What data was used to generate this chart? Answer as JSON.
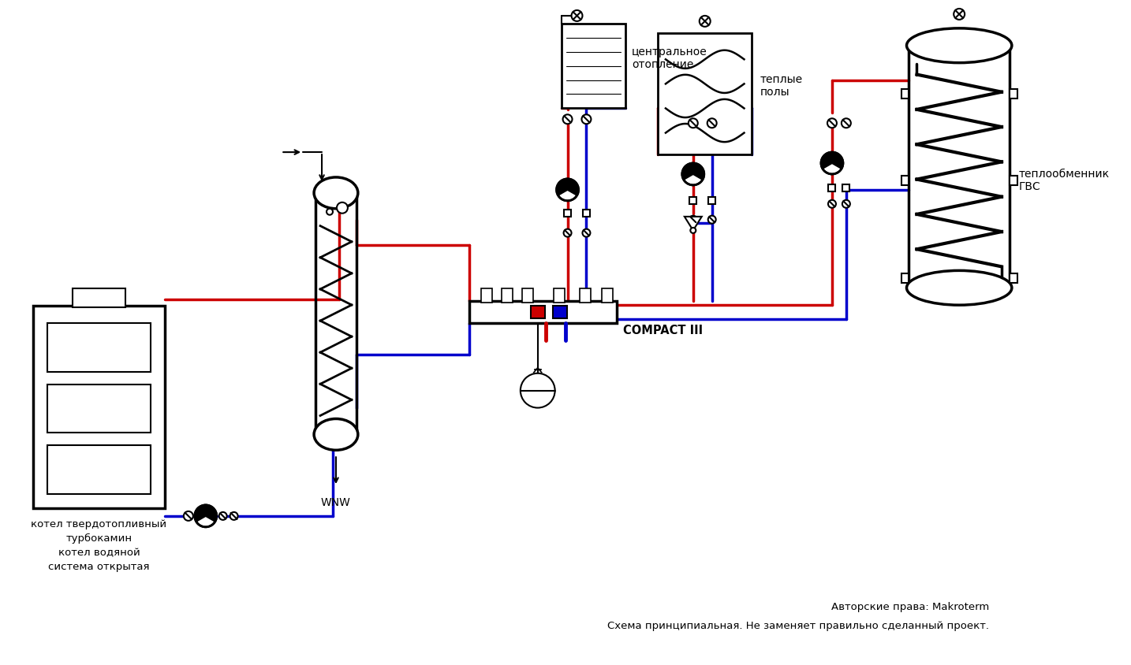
{
  "bg_color": "#ffffff",
  "line_red": "#cc0000",
  "line_blue": "#0000cc",
  "line_black": "#000000",
  "copyright_text1": "Авторские права: Makroterm",
  "copyright_text2": "Схема принципиальная. Не заменяет правильно сделанный проект.",
  "label_boiler": "котел твердотопливный\nтурбокамин\nкотел водяной\nсистема открытая",
  "label_wnw": "WNW",
  "label_compact": "COMPACT III",
  "label_heating": "центральное\nотопление",
  "label_warm_floor": "теплые\nполы",
  "label_hwt": "теплообменник\nГВС",
  "figsize": [
    14.34,
    8.44
  ],
  "dpi": 100
}
